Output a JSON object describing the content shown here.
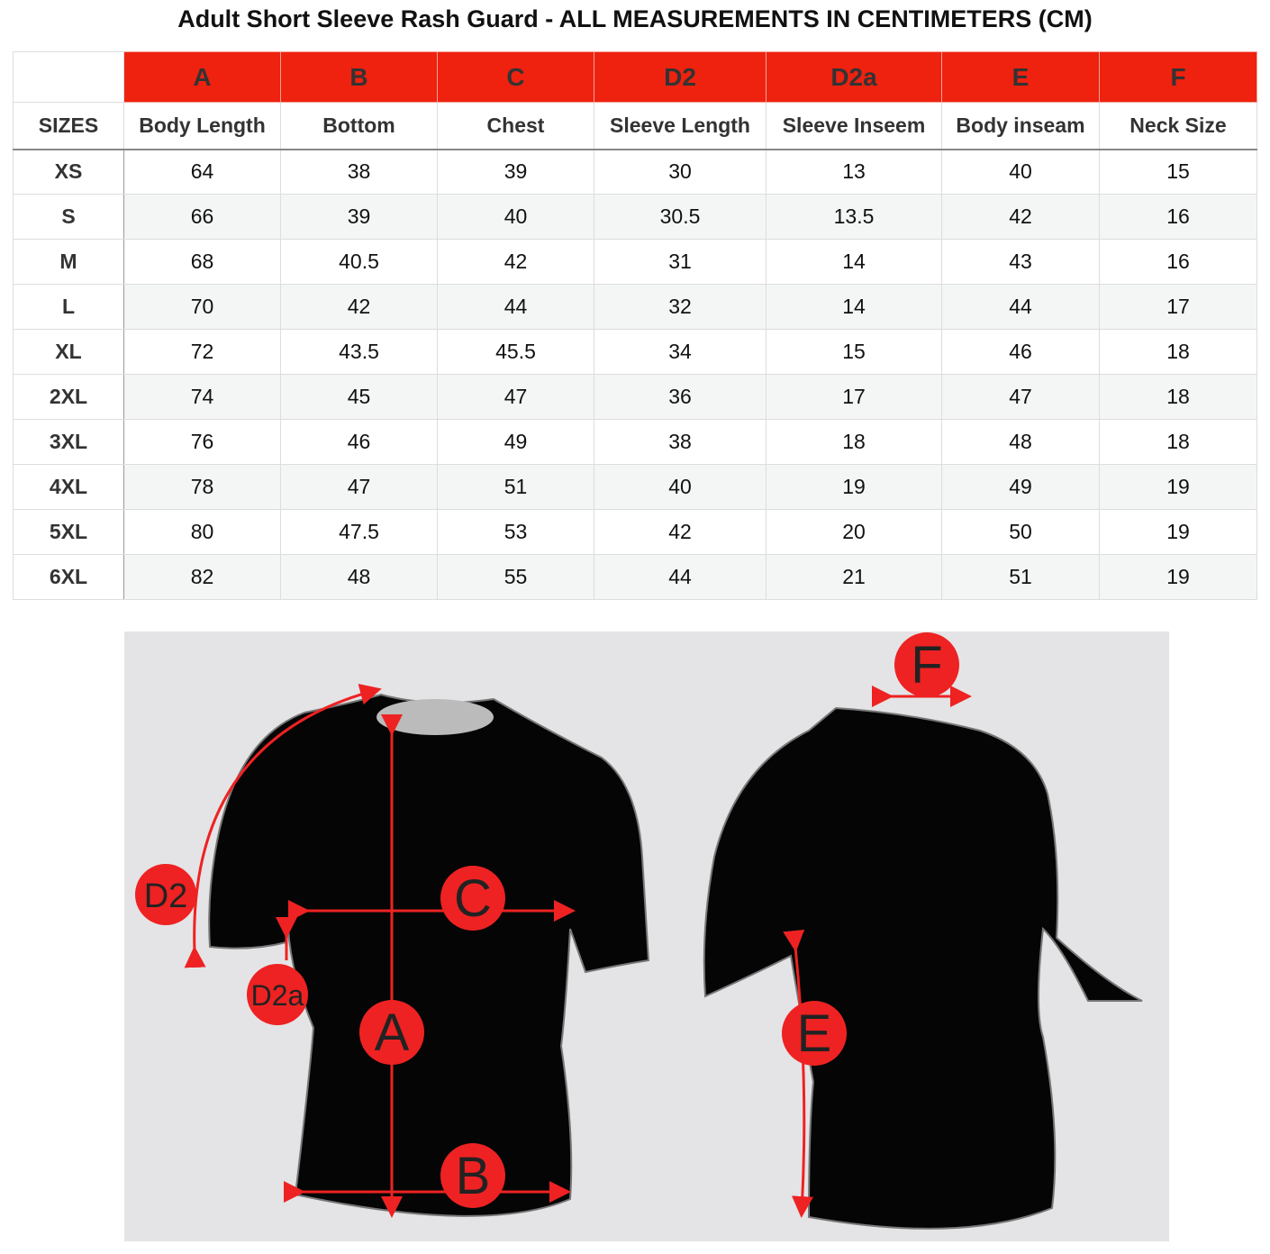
{
  "title": "Adult Short Sleeve Rash Guard - ALL MEASUREMENTS IN CENTIMETERS (CM)",
  "table": {
    "letters": [
      "A",
      "B",
      "C",
      "D2",
      "D2a",
      "E",
      "F"
    ],
    "size_header": "SIZES",
    "columns": [
      "Body Length",
      "Bottom",
      "Chest",
      "Sleeve Length",
      "Sleeve Inseem",
      "Body inseam",
      "Neck Size"
    ],
    "rows": [
      [
        "XS",
        "64",
        "38",
        "39",
        "30",
        "13",
        "40",
        "15"
      ],
      [
        "S",
        "66",
        "39",
        "40",
        "30.5",
        "13.5",
        "42",
        "16"
      ],
      [
        "M",
        "68",
        "40.5",
        "42",
        "31",
        "14",
        "43",
        "16"
      ],
      [
        "L",
        "70",
        "42",
        "44",
        "32",
        "14",
        "44",
        "17"
      ],
      [
        "XL",
        "72",
        "43.5",
        "45.5",
        "34",
        "15",
        "46",
        "18"
      ],
      [
        "2XL",
        "74",
        "45",
        "47",
        "36",
        "17",
        "47",
        "18"
      ],
      [
        "3XL",
        "76",
        "46",
        "49",
        "38",
        "18",
        "48",
        "18"
      ],
      [
        "4XL",
        "78",
        "47",
        "51",
        "40",
        "19",
        "49",
        "19"
      ],
      [
        "5XL",
        "80",
        "47.5",
        "53",
        "42",
        "20",
        "50",
        "19"
      ],
      [
        "6XL",
        "82",
        "48",
        "55",
        "44",
        "21",
        "51",
        "19"
      ]
    ]
  },
  "diagram": {
    "labels": {
      "A": "A",
      "B": "B",
      "C": "C",
      "D2": "D2",
      "D2a": "D2a",
      "E": "E",
      "F": "F"
    },
    "accent": "#ee2222"
  }
}
